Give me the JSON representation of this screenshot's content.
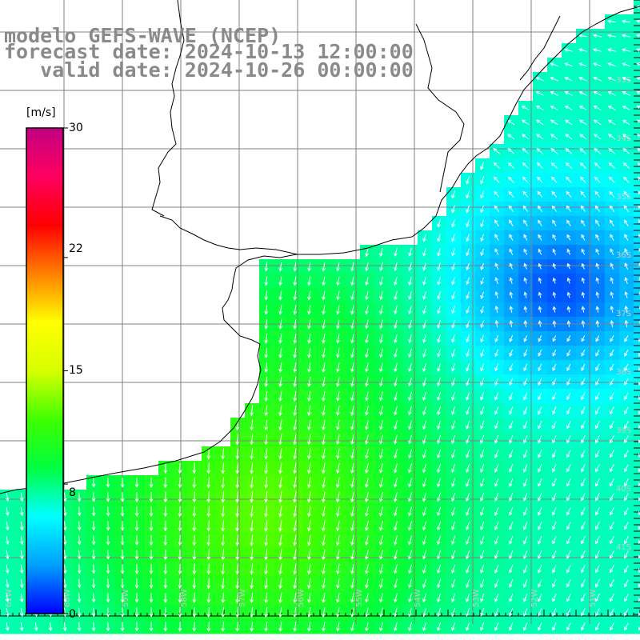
{
  "titles": {
    "line1": "modelo GEFS-WAVE (NCEP)",
    "line2": "forecast date: 2024-10-13 12:00:00",
    "line3": "   valid date: 2024-10-26 00:00:00"
  },
  "colorbar": {
    "unit": "[m/s]",
    "ticks": [
      "30",
      "22",
      "15",
      "8",
      "0"
    ],
    "tick_values": [
      30,
      22,
      15,
      8,
      0
    ],
    "range": [
      0,
      30
    ],
    "colors": [
      "#0000ff",
      "#00a0ff",
      "#00ffff",
      "#00ff40",
      "#40ff00",
      "#d8ff00",
      "#ffff00",
      "#ff8000",
      "#ff0000",
      "#ff0060",
      "#c00080"
    ]
  },
  "map": {
    "background": "#ffffff",
    "grid_color": "#808080",
    "coast_color": "#000000",
    "arrow_color": "#ffffff",
    "lat_labels": [
      "33S",
      "34S",
      "35S",
      "36S",
      "37S",
      "38S",
      "39S",
      "40S",
      "41S"
    ],
    "lon_labels": [
      "61W",
      "60W",
      "59W",
      "58W",
      "57W",
      "56W",
      "55W",
      "54W",
      "53W",
      "52W",
      "51W"
    ],
    "label_color": "#c8c8c8"
  }
}
